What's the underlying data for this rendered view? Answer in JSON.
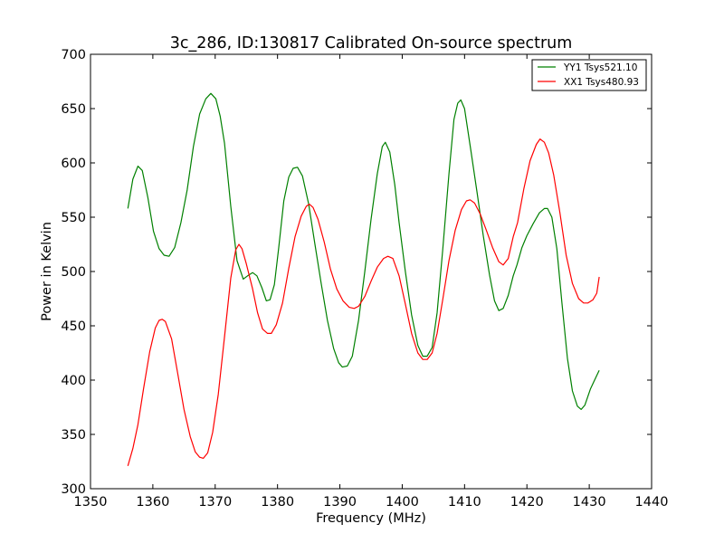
{
  "chart_data": {
    "type": "line",
    "title": "3c_286, ID:130817 Calibrated On-source spectrum",
    "xlabel": "Frequency (MHz)",
    "ylabel": "Power in Kelvin",
    "xlim": [
      1350,
      1440
    ],
    "ylim": [
      300,
      700
    ],
    "xticks": [
      1350,
      1360,
      1370,
      1380,
      1390,
      1400,
      1410,
      1420,
      1430,
      1440
    ],
    "yticks": [
      300,
      350,
      400,
      450,
      500,
      550,
      600,
      650,
      700
    ],
    "grid": false,
    "legend_position": "top-right",
    "series": [
      {
        "name": "YY1 Tsys521.10",
        "color": "#008000",
        "points": [
          [
            1356.0,
            558
          ],
          [
            1356.8,
            585
          ],
          [
            1357.6,
            597
          ],
          [
            1358.3,
            593
          ],
          [
            1359.2,
            568
          ],
          [
            1360.1,
            537
          ],
          [
            1361.0,
            521
          ],
          [
            1361.8,
            515
          ],
          [
            1362.6,
            514
          ],
          [
            1363.5,
            522
          ],
          [
            1364.5,
            545
          ],
          [
            1365.5,
            575
          ],
          [
            1366.5,
            615
          ],
          [
            1367.5,
            645
          ],
          [
            1368.5,
            659
          ],
          [
            1369.3,
            664
          ],
          [
            1370.1,
            659
          ],
          [
            1370.8,
            643
          ],
          [
            1371.5,
            618
          ],
          [
            1372.5,
            560
          ],
          [
            1373.5,
            510
          ],
          [
            1374.5,
            493
          ],
          [
            1375.2,
            496
          ],
          [
            1376.0,
            499
          ],
          [
            1376.7,
            496
          ],
          [
            1377.5,
            485
          ],
          [
            1378.2,
            473
          ],
          [
            1378.8,
            474
          ],
          [
            1379.5,
            488
          ],
          [
            1380.2,
            522
          ],
          [
            1381.0,
            565
          ],
          [
            1381.8,
            587
          ],
          [
            1382.5,
            595
          ],
          [
            1383.2,
            596
          ],
          [
            1384.0,
            588
          ],
          [
            1385.0,
            562
          ],
          [
            1386.0,
            525
          ],
          [
            1387.0,
            489
          ],
          [
            1388.0,
            455
          ],
          [
            1389.0,
            429
          ],
          [
            1389.8,
            416
          ],
          [
            1390.4,
            412
          ],
          [
            1391.2,
            413
          ],
          [
            1392.0,
            422
          ],
          [
            1393.0,
            455
          ],
          [
            1394.0,
            500
          ],
          [
            1395.0,
            548
          ],
          [
            1396.0,
            590
          ],
          [
            1396.8,
            615
          ],
          [
            1397.3,
            619
          ],
          [
            1398.0,
            610
          ],
          [
            1398.8,
            580
          ],
          [
            1399.5,
            545
          ],
          [
            1400.5,
            500
          ],
          [
            1401.5,
            460
          ],
          [
            1402.5,
            432
          ],
          [
            1403.3,
            422
          ],
          [
            1404.0,
            422
          ],
          [
            1404.8,
            430
          ],
          [
            1405.6,
            462
          ],
          [
            1406.5,
            520
          ],
          [
            1407.5,
            590
          ],
          [
            1408.3,
            640
          ],
          [
            1408.9,
            655
          ],
          [
            1409.4,
            658
          ],
          [
            1410.0,
            650
          ],
          [
            1411.0,
            612
          ],
          [
            1412.0,
            573
          ],
          [
            1413.0,
            533
          ],
          [
            1414.0,
            497
          ],
          [
            1414.8,
            473
          ],
          [
            1415.5,
            464
          ],
          [
            1416.2,
            466
          ],
          [
            1417.0,
            478
          ],
          [
            1417.8,
            496
          ],
          [
            1418.4,
            506
          ],
          [
            1419.2,
            522
          ],
          [
            1420.0,
            533
          ],
          [
            1421.0,
            544
          ],
          [
            1422.0,
            554
          ],
          [
            1422.8,
            558
          ],
          [
            1423.3,
            558
          ],
          [
            1424.0,
            550
          ],
          [
            1424.8,
            521
          ],
          [
            1425.6,
            472
          ],
          [
            1426.5,
            420
          ],
          [
            1427.3,
            390
          ],
          [
            1428.1,
            376
          ],
          [
            1428.7,
            373
          ],
          [
            1429.3,
            377
          ],
          [
            1430.2,
            392
          ],
          [
            1431.1,
            403
          ],
          [
            1431.6,
            409
          ]
        ]
      },
      {
        "name": "XX1 Tsys480.93",
        "color": "#ff0000",
        "points": [
          [
            1356.0,
            321
          ],
          [
            1356.8,
            337
          ],
          [
            1357.6,
            359
          ],
          [
            1358.5,
            392
          ],
          [
            1359.5,
            426
          ],
          [
            1360.4,
            448
          ],
          [
            1361.0,
            455
          ],
          [
            1361.5,
            456
          ],
          [
            1362.0,
            454
          ],
          [
            1363.0,
            438
          ],
          [
            1364.0,
            406
          ],
          [
            1365.0,
            373
          ],
          [
            1366.0,
            348
          ],
          [
            1366.8,
            334
          ],
          [
            1367.5,
            329
          ],
          [
            1368.1,
            328
          ],
          [
            1368.8,
            333
          ],
          [
            1369.6,
            352
          ],
          [
            1370.5,
            387
          ],
          [
            1371.5,
            440
          ],
          [
            1372.5,
            494
          ],
          [
            1373.3,
            520
          ],
          [
            1373.8,
            525
          ],
          [
            1374.3,
            521
          ],
          [
            1375.0,
            507
          ],
          [
            1376.0,
            484
          ],
          [
            1376.8,
            462
          ],
          [
            1377.6,
            447
          ],
          [
            1378.4,
            443
          ],
          [
            1379.0,
            443
          ],
          [
            1379.8,
            451
          ],
          [
            1380.8,
            471
          ],
          [
            1381.8,
            503
          ],
          [
            1382.8,
            532
          ],
          [
            1383.8,
            551
          ],
          [
            1384.6,
            560
          ],
          [
            1385.1,
            562
          ],
          [
            1385.7,
            559
          ],
          [
            1386.5,
            548
          ],
          [
            1387.5,
            527
          ],
          [
            1388.5,
            502
          ],
          [
            1389.5,
            484
          ],
          [
            1390.5,
            473
          ],
          [
            1391.5,
            467
          ],
          [
            1392.3,
            466
          ],
          [
            1393.0,
            468
          ],
          [
            1394.0,
            477
          ],
          [
            1395.0,
            491
          ],
          [
            1396.0,
            504
          ],
          [
            1397.0,
            512
          ],
          [
            1397.7,
            514
          ],
          [
            1398.5,
            512
          ],
          [
            1399.5,
            496
          ],
          [
            1400.5,
            470
          ],
          [
            1401.5,
            443
          ],
          [
            1402.5,
            425
          ],
          [
            1403.3,
            419
          ],
          [
            1404.0,
            419
          ],
          [
            1404.8,
            425
          ],
          [
            1405.6,
            443
          ],
          [
            1406.5,
            474
          ],
          [
            1407.5,
            510
          ],
          [
            1408.5,
            538
          ],
          [
            1409.5,
            557
          ],
          [
            1410.3,
            565
          ],
          [
            1410.9,
            566
          ],
          [
            1411.6,
            563
          ],
          [
            1412.5,
            553
          ],
          [
            1413.5,
            538
          ],
          [
            1414.5,
            522
          ],
          [
            1415.5,
            509
          ],
          [
            1416.2,
            506
          ],
          [
            1417.0,
            512
          ],
          [
            1417.8,
            532
          ],
          [
            1418.5,
            545
          ],
          [
            1419.5,
            576
          ],
          [
            1420.5,
            602
          ],
          [
            1421.5,
            617
          ],
          [
            1422.1,
            622
          ],
          [
            1422.8,
            619
          ],
          [
            1423.5,
            609
          ],
          [
            1424.3,
            589
          ],
          [
            1425.3,
            554
          ],
          [
            1426.3,
            515
          ],
          [
            1427.3,
            489
          ],
          [
            1428.3,
            475
          ],
          [
            1429.1,
            471
          ],
          [
            1429.8,
            471
          ],
          [
            1430.6,
            474
          ],
          [
            1431.2,
            480
          ],
          [
            1431.6,
            495
          ]
        ]
      }
    ]
  }
}
